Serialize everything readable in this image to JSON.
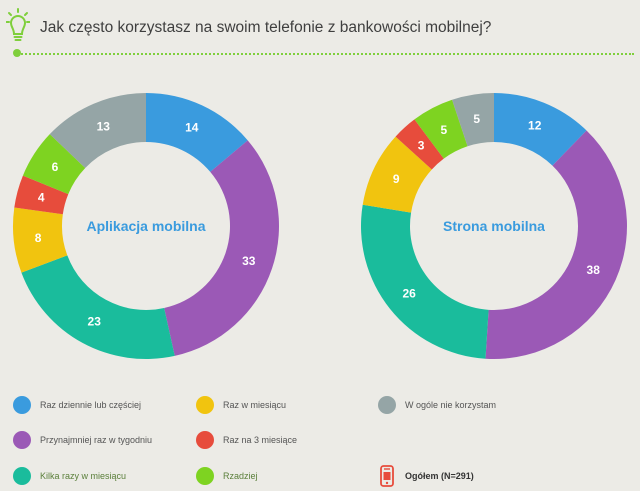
{
  "header": {
    "title": "Jak często korzystasz na swoim telefonie z bankowości mobilnej?"
  },
  "colors": {
    "accent": "#7fcf3c",
    "raz_dziennie": "#3a9bde",
    "przynajmniej_raz_w_tygodniu": "#9b59b6",
    "kilka_razy_w_miesiacu": "#1abc9c",
    "raz_w_miesiacu": "#f1c40f",
    "raz_na_3_miesiace": "#e74c3c",
    "rzadziej": "#7ed321",
    "w_ogole_nie_korzystam": "#95a5a6",
    "total": "#e74c3c"
  },
  "legend": {
    "items": [
      {
        "label": "Raz dziennie lub częściej",
        "color": "#3a9bde"
      },
      {
        "label": "Przynajmniej raz w tygodniu",
        "color": "#9b59b6"
      },
      {
        "label": "Kilka razy w miesiącu",
        "color": "#1abc9c"
      },
      {
        "label": "Raz w miesiącu",
        "color": "#f1c40f"
      },
      {
        "label": "Raz na 3 miesiące",
        "color": "#e74c3c"
      },
      {
        "label": "Rzadziej",
        "color": "#7ed321"
      },
      {
        "label": "W ogóle nie korzystam",
        "color": "#95a5a6"
      }
    ],
    "total_label": "Ogółem (N=291)",
    "total_icon": "phone-icon"
  },
  "chart_data": [
    {
      "type": "pie",
      "title": "Aplikacja mobilna",
      "categories": [
        "Raz dziennie lub częściej",
        "Przynajmniej raz w tygodniu",
        "Kilka razy w miesiącu",
        "Raz w miesiącu",
        "Raz na 3 miesiące",
        "Rzadziej",
        "W ogóle nie korzystam"
      ],
      "values": [
        14,
        33,
        23,
        8,
        4,
        6,
        13
      ],
      "colors": [
        "#3a9bde",
        "#9b59b6",
        "#1abc9c",
        "#f1c40f",
        "#e74c3c",
        "#7ed321",
        "#95a5a6"
      ]
    },
    {
      "type": "pie",
      "title": "Strona mobilna",
      "categories": [
        "Raz dziennie lub częściej",
        "Przynajmniej raz w tygodniu",
        "Kilka razy w miesiącu",
        "Raz w miesiącu",
        "Raz na 3 miesiące",
        "Rzadziej",
        "W ogóle nie korzystam"
      ],
      "values": [
        12,
        38,
        26,
        9,
        3,
        5,
        5
      ],
      "colors": [
        "#3a9bde",
        "#9b59b6",
        "#1abc9c",
        "#f1c40f",
        "#e74c3c",
        "#7ed321",
        "#95a5a6"
      ]
    }
  ]
}
